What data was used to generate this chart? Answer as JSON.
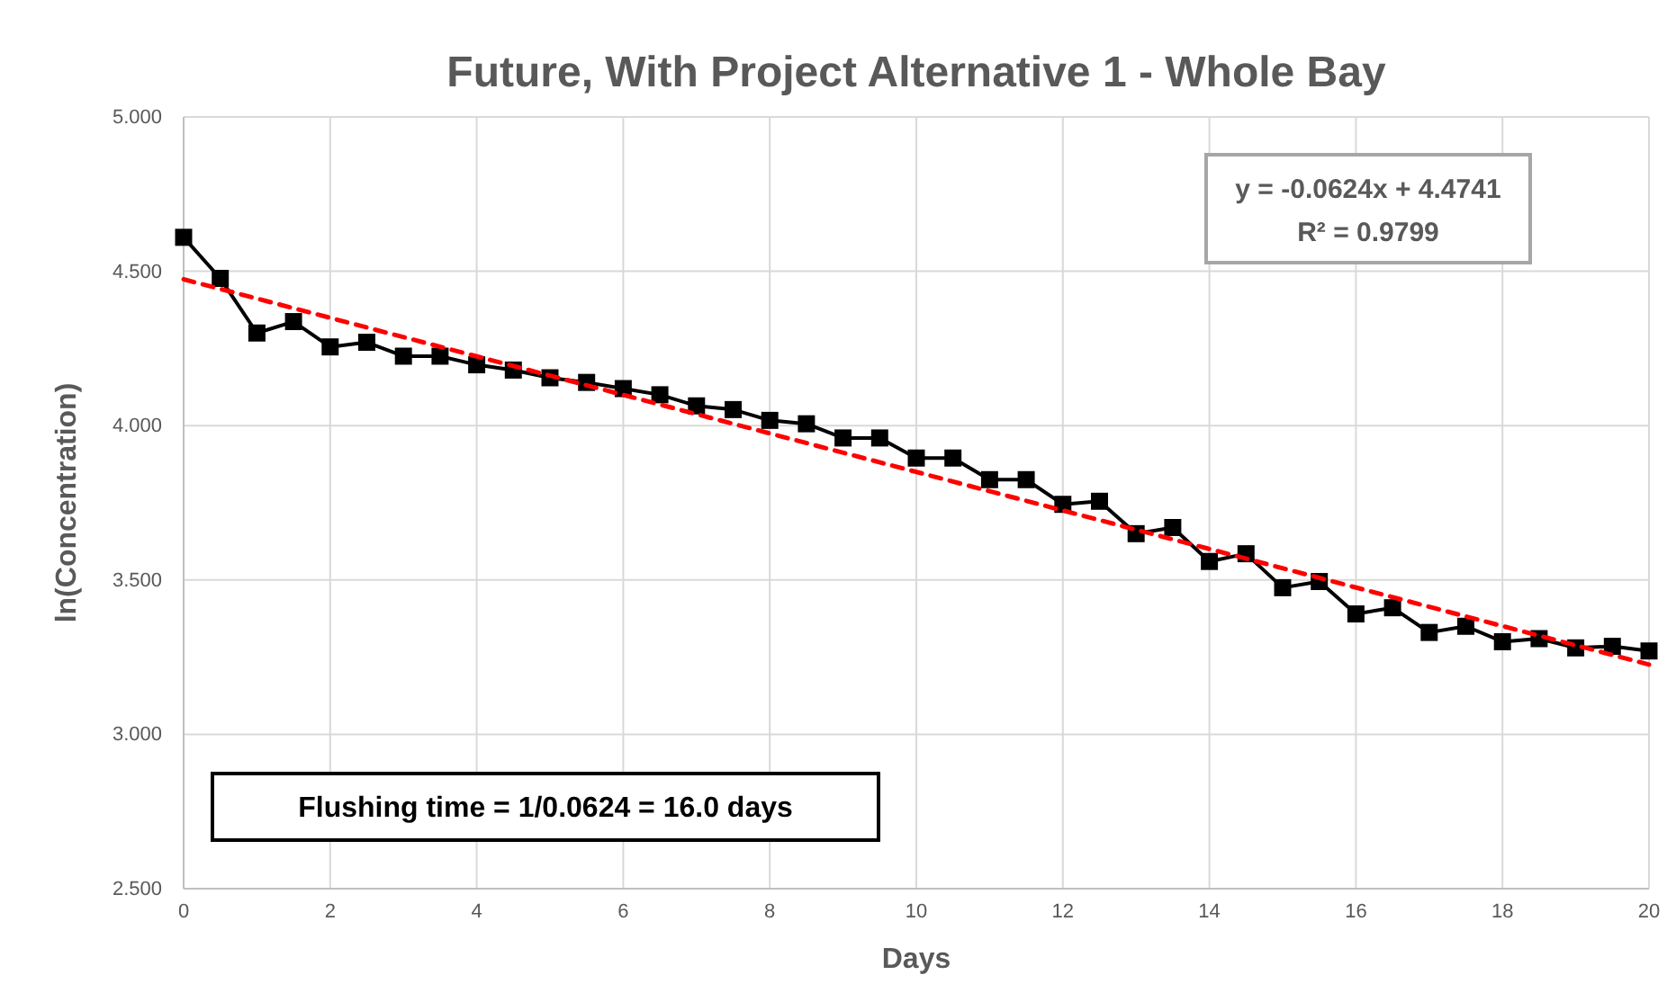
{
  "chart_data": {
    "type": "line",
    "title": "Future, With Project Alternative 1 - Whole Bay",
    "xlabel": "Days",
    "ylabel": "ln(Concentration)",
    "x": [
      0,
      0.5,
      1,
      1.5,
      2,
      2.5,
      3,
      3.5,
      4,
      4.5,
      5,
      5.5,
      6,
      6.5,
      7,
      7.5,
      8,
      8.5,
      9,
      9.5,
      10,
      10.5,
      11,
      11.5,
      12,
      12.5,
      13,
      13.5,
      14,
      14.5,
      15,
      15.5,
      16,
      16.5,
      17,
      17.5,
      18,
      18.5,
      19,
      19.5,
      20
    ],
    "series": [
      {
        "color": "#000000",
        "marker": "square",
        "line_style": "solid",
        "values": [
          4.61,
          4.477,
          4.3,
          4.337,
          4.255,
          4.27,
          4.225,
          4.225,
          4.197,
          4.18,
          4.155,
          4.14,
          4.12,
          4.1,
          4.064,
          4.052,
          4.017,
          4.006,
          3.96,
          3.96,
          3.895,
          3.895,
          3.825,
          3.825,
          3.745,
          3.755,
          3.65,
          3.67,
          3.56,
          3.585,
          3.475,
          3.495,
          3.39,
          3.41,
          3.33,
          3.35,
          3.3,
          3.31,
          3.28,
          3.285,
          3.27
        ]
      },
      {
        "type": "line",
        "color": "#ff0000",
        "marker": "none",
        "line_style": "dashed",
        "x": [
          0,
          20
        ],
        "values": [
          4.474,
          3.226
        ]
      }
    ],
    "xlim": [
      0,
      20
    ],
    "xticks": [
      0,
      2,
      4,
      6,
      8,
      10,
      12,
      14,
      16,
      18,
      20
    ],
    "ylim": [
      2.5,
      5
    ],
    "yticks": [
      {
        "value": 2.5,
        "label": "2.500"
      },
      {
        "value": 3,
        "label": "3.000"
      },
      {
        "value": 3.5,
        "label": "3.500"
      },
      {
        "value": 4,
        "label": "4.000"
      },
      {
        "value": 4.5,
        "label": "4.500"
      },
      {
        "value": 5,
        "label": "5.000"
      }
    ],
    "grid": true,
    "annotations": [
      "y = -0.0624x + 4.4741",
      "R² = 0.9799",
      "Flushing time = 1/0.0624 = 16.0 days"
    ]
  }
}
